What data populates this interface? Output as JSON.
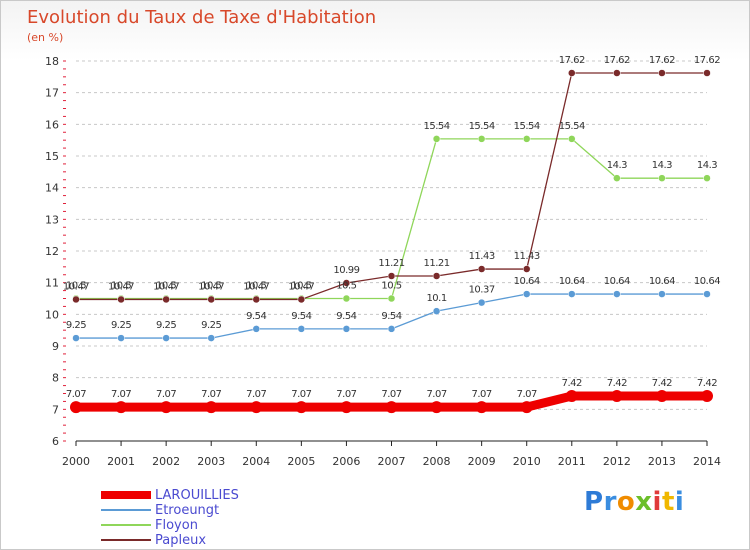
{
  "header": {
    "title": "Evolution du Taux de Taxe d'Habitation",
    "unit": "(en %)"
  },
  "brand": {
    "text": "Proxiti"
  },
  "colors": {
    "title": "#d8482a",
    "legend_text": "#4a4ad0",
    "grid": "#c8c8c8",
    "tick": "#e0203a"
  },
  "chart_data": {
    "type": "line",
    "title": "Evolution du Taux de Taxe d'Habitation",
    "ylabel": "(en %)",
    "xlabel": "",
    "x": [
      "2000",
      "2001",
      "2002",
      "2003",
      "2004",
      "2005",
      "2006",
      "2007",
      "2008",
      "2009",
      "2010",
      "2011",
      "2012",
      "2013",
      "2014"
    ],
    "ylim": [
      6,
      18
    ],
    "yticks": [
      "6",
      "7",
      "8",
      "9",
      "10",
      "11",
      "12",
      "13",
      "14",
      "15",
      "16",
      "17",
      "18"
    ],
    "grid": "horizontal-dashed",
    "legend_position": "bottom-left",
    "series": [
      {
        "name": "LAROUILLIES",
        "color": "#ee0000",
        "values": [
          7.07,
          7.07,
          7.07,
          7.07,
          7.07,
          7.07,
          7.07,
          7.07,
          7.07,
          7.07,
          7.07,
          7.42,
          7.42,
          7.42,
          7.42
        ],
        "labels": [
          "7.07",
          "7.07",
          "7.07",
          "7.07",
          "7.07",
          "7.07",
          "7.07",
          "7.07",
          "7.07",
          "7.07",
          "7.07",
          "7.42",
          "7.42",
          "7.42",
          "7.42"
        ]
      },
      {
        "name": "Etroeungt",
        "color": "#5b9bd5",
        "values": [
          9.25,
          9.25,
          9.25,
          9.25,
          9.54,
          9.54,
          9.54,
          9.54,
          10.1,
          10.37,
          10.64,
          10.64,
          10.64,
          10.64,
          10.64
        ],
        "labels": [
          "9.25",
          "9.25",
          "9.25",
          "9.25",
          "9.54",
          "9.54",
          "9.54",
          "9.54",
          "10.1",
          "10.37",
          "10.64",
          "10.64",
          "10.64",
          "10.64",
          "10.64"
        ]
      },
      {
        "name": "Floyon",
        "color": "#8fd65a",
        "values": [
          10.5,
          10.5,
          10.5,
          10.5,
          10.5,
          10.5,
          10.5,
          10.5,
          15.54,
          15.54,
          15.54,
          15.54,
          14.3,
          14.3,
          14.3
        ],
        "labels": [
          "10.5",
          "10.5",
          "10.5",
          "10.5",
          "10.5",
          "10.5",
          "10.5",
          "10.5",
          "15.54",
          "15.54",
          "15.54",
          "15.54",
          "14.3",
          "14.3",
          "14.3"
        ]
      },
      {
        "name": "Papleux",
        "color": "#7a2a2a",
        "values": [
          10.47,
          10.47,
          10.47,
          10.47,
          10.47,
          10.47,
          10.99,
          11.21,
          11.21,
          11.43,
          11.43,
          17.62,
          17.62,
          17.62,
          17.62
        ],
        "labels": [
          "10.47",
          "10.47",
          "10.47",
          "10.47",
          "10.47",
          "10.47",
          "10.99",
          "11.21",
          "11.21",
          "11.43",
          "11.43",
          "17.62",
          "17.62",
          "17.62",
          "17.62"
        ]
      }
    ]
  }
}
